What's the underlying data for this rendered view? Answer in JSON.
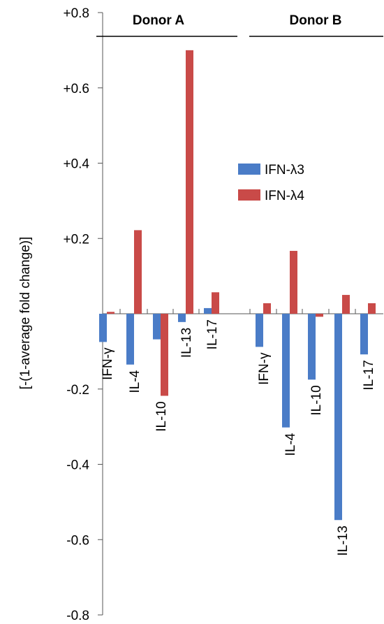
{
  "chart_data": {
    "type": "bar",
    "ylabel": "[-(1-average fold change)]",
    "ylim": [
      -0.8,
      0.8
    ],
    "yticks": [
      {
        "value": 0.8,
        "label": "+0.8"
      },
      {
        "value": 0.6,
        "label": "+0.6"
      },
      {
        "value": 0.4,
        "label": "+0.4"
      },
      {
        "value": 0.2,
        "label": "+0.2"
      },
      {
        "value": -0.2,
        "label": "-0.2"
      },
      {
        "value": -0.4,
        "label": "-0.4"
      },
      {
        "value": -0.6,
        "label": "-0.6"
      },
      {
        "value": -0.8,
        "label": "-0.8"
      }
    ],
    "groups": [
      "Donor A",
      "Donor B"
    ],
    "categories": [
      "IFN-γ",
      "IL-4",
      "IL-10",
      "IL-13",
      "IL-17"
    ],
    "series": [
      {
        "name": "IFN-λ3",
        "color": "#4a7cc7",
        "values": {
          "Donor A": [
            -0.075,
            -0.135,
            -0.068,
            -0.022,
            0.015
          ],
          "Donor B": [
            -0.088,
            -0.302,
            -0.175,
            -0.548,
            -0.108
          ]
        }
      },
      {
        "name": "IFN-λ4",
        "color": "#c94a48",
        "values": {
          "Donor A": [
            0.005,
            0.222,
            -0.218,
            0.7,
            0.057
          ],
          "Donor B": [
            0.028,
            0.167,
            -0.008,
            0.05,
            0.028
          ]
        }
      }
    ],
    "legend_position": "right-center"
  }
}
